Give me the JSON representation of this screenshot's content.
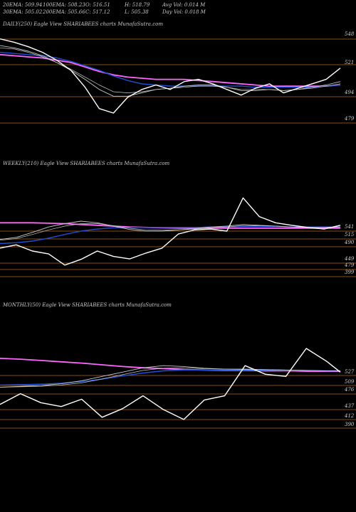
{
  "header": {
    "row1": [
      "20EMA: 509.94",
      "100EMA: 508.23",
      "O: 516.51",
      "H: 518.79",
      "Avg Vol: 0.014  M"
    ],
    "row2": [
      "30EMA: 505.02",
      "200EMA: 505.66",
      "C: 517.12",
      "L: 505.38",
      "Day Vol: 0.018  M"
    ]
  },
  "colors": {
    "background": "#000000",
    "price": "#ffffff",
    "ema_short": "#c8c8c8",
    "ema_mid": "#1f4fd6",
    "ema_long": "#8b4513",
    "ema_longest": "#ff66ff",
    "level_line": "#b5651d"
  },
  "chart_data": [
    {
      "type": "line",
      "title": "DAILY(250) Eagle  View  SHARIABEES charts MunafaSutra.com",
      "ticks": [
        "548",
        "521",
        "494",
        "479"
      ],
      "tick_values": [
        548,
        521,
        494,
        479
      ],
      "ylim": [
        470,
        556
      ],
      "x": [
        0,
        10,
        20,
        30,
        40,
        50,
        60,
        70,
        80,
        90,
        100,
        110,
        120,
        130,
        140,
        150,
        160,
        170,
        180,
        190,
        200,
        210,
        220,
        230,
        240
      ],
      "series": [
        {
          "values": [
            548,
            545,
            541,
            536,
            529,
            520,
            505,
            486,
            482,
            496,
            503,
            507,
            503,
            510,
            512,
            508,
            503,
            498,
            504,
            508,
            500,
            504,
            508,
            512,
            522
          ]
        },
        {
          "values": [
            542,
            540,
            537,
            533,
            527,
            520,
            512,
            503,
            497,
            497,
            500,
            503,
            504,
            506,
            507,
            507,
            505,
            502,
            502,
            503,
            502,
            503,
            505,
            507,
            510
          ]
        },
        {
          "values": [
            540,
            539,
            536,
            532,
            527,
            521,
            514,
            507,
            501,
            500,
            501,
            503,
            504,
            505,
            506,
            506,
            505,
            503,
            503,
            503,
            502,
            503,
            504,
            506,
            508
          ]
        },
        {
          "values": [
            536,
            535,
            534,
            533,
            531,
            528,
            524,
            520,
            515,
            511,
            508,
            507,
            506,
            506,
            506,
            506,
            506,
            506,
            505,
            505,
            505,
            505,
            505,
            506,
            507
          ]
        },
        {
          "values": [
            534,
            533,
            532,
            531,
            529,
            527,
            523,
            519,
            516,
            514,
            513,
            512,
            512,
            512,
            511,
            510,
            509,
            508,
            507,
            506,
            506,
            506,
            506,
            506,
            507
          ]
        }
      ]
    },
    {
      "type": "line",
      "title": "WEEKLY(210) Eagle  View  SHARIABEES charts MunafaSutra.com",
      "ticks": [
        "541",
        "515",
        "490",
        "449",
        "479",
        "399"
      ],
      "tick_values": [
        541,
        515,
        490,
        449,
        479,
        399
      ],
      "ylim": [
        380,
        560
      ],
      "x": [
        0,
        10,
        20,
        30,
        40,
        50,
        60,
        70,
        80,
        90,
        100,
        110,
        120,
        130,
        140,
        150,
        160,
        170,
        180,
        190,
        200,
        210
      ],
      "series": [
        {
          "values": [
            459,
            467,
            452,
            445,
            418,
            432,
            452,
            439,
            433,
            447,
            459,
            493,
            503,
            505,
            500,
            580,
            535,
            520,
            514,
            509,
            505,
            514
          ]
        },
        {
          "values": [
            480,
            485,
            497,
            510,
            518,
            524,
            520,
            512,
            504,
            500,
            500,
            503,
            506,
            510,
            512,
            516,
            514,
            512,
            510,
            509,
            509,
            510
          ]
        },
        {
          "values": [
            478,
            482,
            492,
            503,
            512,
            518,
            518,
            513,
            507,
            503,
            502,
            503,
            505,
            508,
            510,
            513,
            513,
            512,
            510,
            509,
            509,
            510
          ]
        },
        {
          "values": [
            470,
            472,
            476,
            483,
            492,
            500,
            505,
            508,
            509,
            509,
            509,
            509,
            509,
            510,
            510,
            511,
            511,
            511,
            510,
            510,
            510,
            510
          ]
        },
        {
          "values": [
            520,
            520,
            520,
            519,
            518,
            516,
            514,
            512,
            510,
            509,
            508,
            507,
            507,
            507,
            507,
            507,
            507,
            507,
            507,
            507,
            507,
            507
          ]
        }
      ]
    },
    {
      "type": "line",
      "title": "MONTHLY(50) Eagle  View  SHARIABEES charts MunafaSutra.com",
      "ticks": [
        "527",
        "509",
        "476",
        "437",
        "412",
        "390"
      ],
      "tick_values": [
        527,
        509,
        476,
        437,
        412,
        390
      ],
      "ylim": [
        370,
        560
      ],
      "x": [
        0,
        3,
        6,
        9,
        12,
        15,
        18,
        21,
        24,
        27,
        30,
        33,
        36,
        39,
        42,
        45,
        48,
        50
      ],
      "series": [
        {
          "values": [
            430,
            455,
            434,
            425,
            442,
            400,
            420,
            450,
            418,
            395,
            440,
            450,
            520,
            500,
            495,
            560,
            530,
            505
          ]
        },
        {
          "values": [
            470,
            472,
            474,
            478,
            485,
            495,
            505,
            515,
            520,
            518,
            514,
            512,
            512,
            511,
            510,
            509,
            508,
            508
          ]
        },
        {
          "values": [
            470,
            471,
            472,
            475,
            480,
            489,
            499,
            509,
            514,
            515,
            513,
            512,
            511,
            511,
            510,
            509,
            508,
            508
          ]
        },
        {
          "values": [
            475,
            476,
            477,
            479,
            483,
            489,
            496,
            503,
            508,
            510,
            510,
            510,
            510,
            510,
            509,
            509,
            508,
            508
          ]
        },
        {
          "values": [
            537,
            535,
            532,
            529,
            526,
            522,
            518,
            515,
            513,
            511,
            510,
            509,
            509,
            508,
            508,
            507,
            507,
            507
          ]
        }
      ]
    }
  ]
}
